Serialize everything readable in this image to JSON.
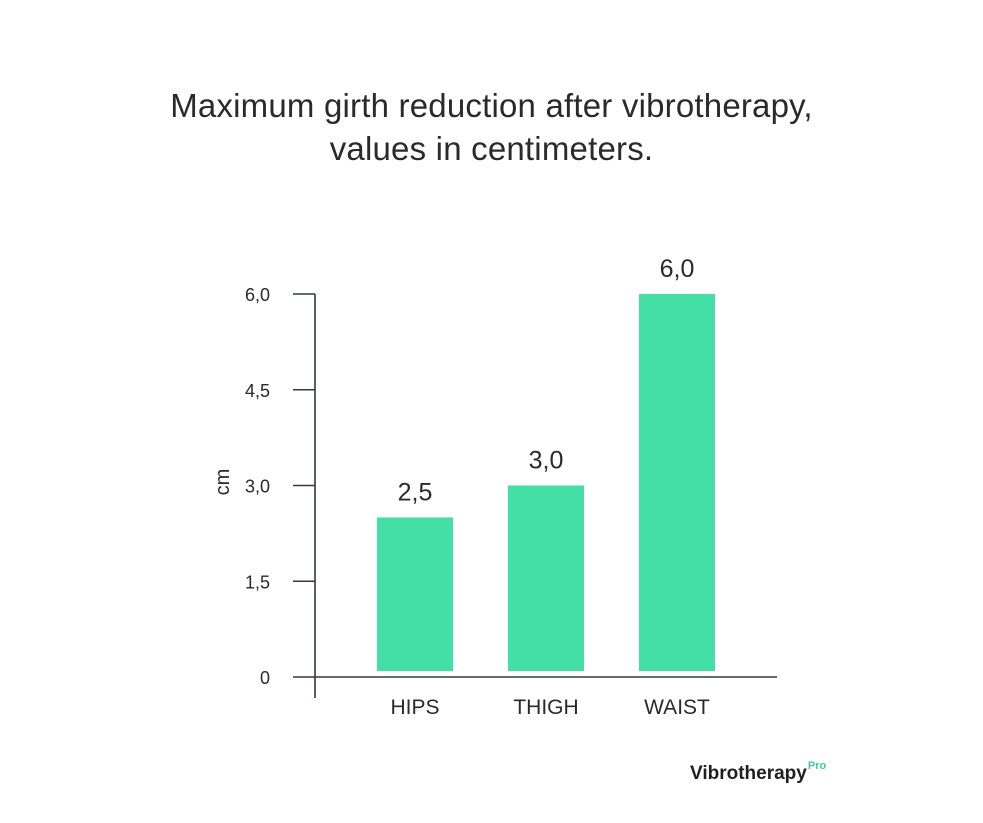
{
  "chart_data": {
    "type": "bar",
    "title": "Maximum girth reduction after vibrotherapy,",
    "subtitle": "values in centimeters.",
    "categories": [
      "HIPS",
      "THIGH",
      "WAIST"
    ],
    "values": [
      2.5,
      3.0,
      6.0
    ],
    "value_labels": [
      "2,5",
      "3,0",
      "6,0"
    ],
    "xlabel": "",
    "ylabel": "cm",
    "ylim": [
      0,
      6.0
    ],
    "yticks": [
      0,
      1.5,
      3.0,
      4.5,
      6.0
    ],
    "ytick_labels": [
      "0",
      "1,5",
      "3,0",
      "4,5",
      "6,0"
    ],
    "grid": false,
    "bar_color": "#43dfa6",
    "axis_color": "#2f3a45"
  },
  "brand": {
    "name": "Vibrotherapy",
    "suffix": "Pro",
    "accent": "#3fc99a"
  }
}
